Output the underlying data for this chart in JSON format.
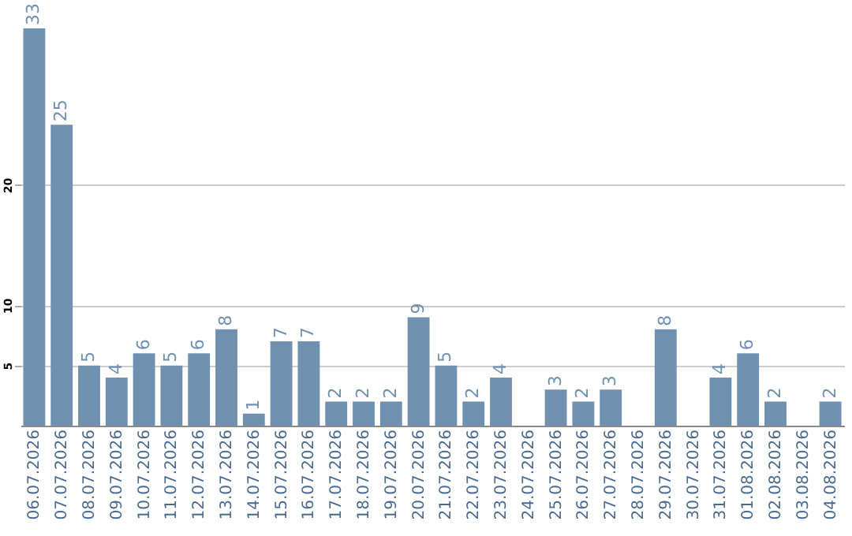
{
  "chart_data": {
    "type": "bar",
    "categories": [
      "06.07.2026",
      "07.07.2026",
      "08.07.2026",
      "09.07.2026",
      "10.07.2026",
      "11.07.2026",
      "12.07.2026",
      "13.07.2026",
      "14.07.2026",
      "15.07.2026",
      "16.07.2026",
      "17.07.2026",
      "18.07.2026",
      "19.07.2026",
      "20.07.2026",
      "21.07.2026",
      "22.07.2026",
      "23.07.2026",
      "24.07.2026",
      "25.07.2026",
      "26.07.2026",
      "27.07.2026",
      "28.07.2026",
      "29.07.2026",
      "30.07.2026",
      "31.07.2026",
      "01.08.2026",
      "02.08.2026",
      "03.08.2026",
      "04.08.2026"
    ],
    "values": [
      33,
      25,
      5,
      4,
      6,
      5,
      6,
      8,
      1,
      7,
      7,
      2,
      2,
      2,
      9,
      5,
      2,
      4,
      null,
      3,
      2,
      3,
      null,
      8,
      null,
      4,
      6,
      2,
      null,
      2
    ],
    "color": "#7090b0",
    "ylim": [
      0,
      33
    ],
    "yticks": [
      5,
      10,
      20
    ],
    "grid": "y",
    "data_labels": true
  }
}
